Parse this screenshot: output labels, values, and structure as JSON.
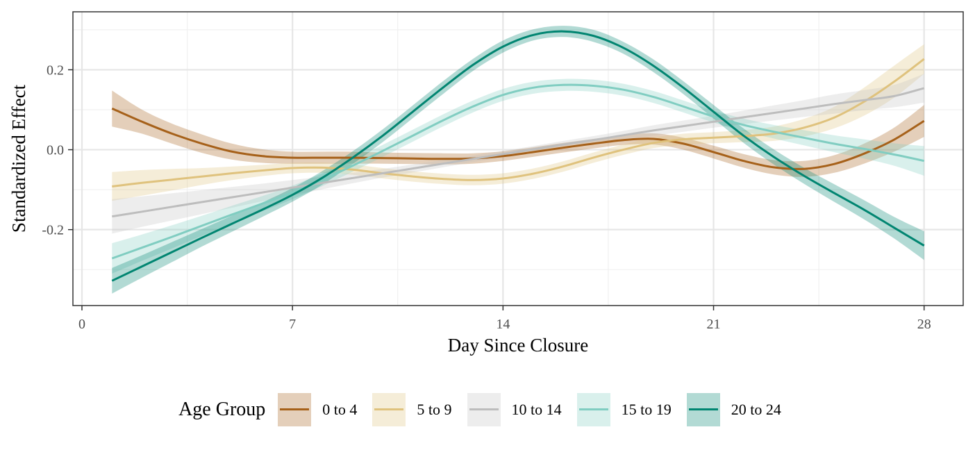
{
  "chart_data": {
    "type": "line",
    "xlabel": "Day Since Closure",
    "ylabel": "Standardized Effect",
    "xlim": [
      -0.3,
      29.3
    ],
    "ylim": [
      -0.39,
      0.345
    ],
    "xticks": [
      0,
      7,
      14,
      21,
      28
    ],
    "xtick_labels": [
      "0",
      "7",
      "14",
      "21",
      "28"
    ],
    "yticks": [
      -0.2,
      0.0,
      0.2
    ],
    "ytick_labels": [
      "-0.2",
      "0.0",
      "0.2"
    ],
    "grid": true,
    "legend_title": "Age Group",
    "legend_position": "bottom",
    "x": [
      1,
      2,
      3,
      4,
      5,
      6,
      7,
      8,
      9,
      10,
      11,
      12,
      13,
      14,
      15,
      16,
      17,
      18,
      19,
      20,
      21,
      22,
      23,
      24,
      25,
      26,
      27,
      28
    ],
    "series": [
      {
        "name": "0 to 4",
        "color": "#a6611a",
        "band_color": "#a6611a",
        "values": [
          0.103,
          0.07,
          0.04,
          0.015,
          -0.005,
          -0.016,
          -0.02,
          -0.02,
          -0.02,
          -0.021,
          -0.022,
          -0.023,
          -0.022,
          -0.016,
          -0.006,
          0.005,
          0.015,
          0.024,
          0.027,
          0.015,
          -0.006,
          -0.028,
          -0.044,
          -0.048,
          -0.036,
          -0.01,
          0.025,
          0.072
        ],
        "lower": [
          0.058,
          0.04,
          0.015,
          -0.008,
          -0.025,
          -0.033,
          -0.035,
          -0.035,
          -0.035,
          -0.035,
          -0.036,
          -0.037,
          -0.035,
          -0.028,
          -0.018,
          -0.007,
          0.003,
          0.012,
          0.013,
          0.0,
          -0.022,
          -0.045,
          -0.062,
          -0.068,
          -0.058,
          -0.035,
          -0.005,
          0.032
        ],
        "upper": [
          0.148,
          0.1,
          0.065,
          0.038,
          0.015,
          0.001,
          -0.005,
          -0.005,
          -0.005,
          -0.007,
          -0.008,
          -0.009,
          -0.009,
          -0.004,
          0.006,
          0.017,
          0.027,
          0.036,
          0.041,
          0.03,
          0.01,
          -0.011,
          -0.026,
          -0.028,
          -0.014,
          0.015,
          0.055,
          0.112
        ]
      },
      {
        "name": "5 to 9",
        "color": "#dfc27d",
        "band_color": "#dfc27d",
        "values": [
          -0.092,
          -0.083,
          -0.075,
          -0.067,
          -0.059,
          -0.052,
          -0.046,
          -0.045,
          -0.05,
          -0.059,
          -0.067,
          -0.073,
          -0.076,
          -0.072,
          -0.06,
          -0.042,
          -0.02,
          0.0,
          0.017,
          0.026,
          0.03,
          0.034,
          0.04,
          0.055,
          0.08,
          0.12,
          0.17,
          0.227
        ],
        "lower": [
          -0.128,
          -0.115,
          -0.102,
          -0.088,
          -0.076,
          -0.066,
          -0.059,
          -0.058,
          -0.063,
          -0.072,
          -0.08,
          -0.086,
          -0.089,
          -0.085,
          -0.073,
          -0.055,
          -0.033,
          -0.013,
          0.004,
          0.012,
          0.016,
          0.019,
          0.022,
          0.033,
          0.053,
          0.085,
          0.13,
          0.19
        ],
        "upper": [
          -0.056,
          -0.051,
          -0.048,
          -0.046,
          -0.042,
          -0.038,
          -0.033,
          -0.032,
          -0.037,
          -0.046,
          -0.054,
          -0.06,
          -0.063,
          -0.059,
          -0.047,
          -0.029,
          -0.007,
          0.013,
          0.03,
          0.04,
          0.044,
          0.049,
          0.058,
          0.077,
          0.107,
          0.155,
          0.21,
          0.264
        ]
      },
      {
        "name": "10 to 14",
        "color": "#bdbdbd",
        "band_color": "#bdbdbd",
        "values": [
          -0.167,
          -0.155,
          -0.143,
          -0.131,
          -0.119,
          -0.107,
          -0.095,
          -0.083,
          -0.071,
          -0.059,
          -0.047,
          -0.035,
          -0.023,
          -0.011,
          0.001,
          0.013,
          0.024,
          0.036,
          0.048,
          0.059,
          0.07,
          0.081,
          0.092,
          0.103,
          0.114,
          0.124,
          0.134,
          0.154
        ],
        "lower": [
          -0.21,
          -0.193,
          -0.177,
          -0.161,
          -0.145,
          -0.129,
          -0.114,
          -0.099,
          -0.084,
          -0.07,
          -0.057,
          -0.044,
          -0.031,
          -0.019,
          -0.007,
          0.004,
          0.014,
          0.025,
          0.035,
          0.045,
          0.055,
          0.064,
          0.073,
          0.082,
          0.09,
          0.099,
          0.106,
          0.118
        ],
        "upper": [
          -0.124,
          -0.117,
          -0.109,
          -0.101,
          -0.093,
          -0.085,
          -0.076,
          -0.067,
          -0.058,
          -0.048,
          -0.037,
          -0.026,
          -0.015,
          -0.003,
          0.009,
          0.022,
          0.034,
          0.047,
          0.061,
          0.073,
          0.085,
          0.098,
          0.111,
          0.124,
          0.138,
          0.149,
          0.162,
          0.19
        ]
      },
      {
        "name": "15 to 19",
        "color": "#80cdc1",
        "band_color": "#80cdc1",
        "values": [
          -0.272,
          -0.245,
          -0.218,
          -0.19,
          -0.162,
          -0.135,
          -0.107,
          -0.075,
          -0.04,
          -0.003,
          0.035,
          0.073,
          0.108,
          0.137,
          0.155,
          0.162,
          0.16,
          0.15,
          0.132,
          0.108,
          0.083,
          0.062,
          0.045,
          0.03,
          0.015,
          0.002,
          -0.012,
          -0.028
        ],
        "lower": [
          -0.31,
          -0.278,
          -0.247,
          -0.215,
          -0.184,
          -0.154,
          -0.124,
          -0.091,
          -0.055,
          -0.018,
          0.02,
          0.058,
          0.093,
          0.122,
          0.14,
          0.147,
          0.145,
          0.135,
          0.117,
          0.093,
          0.068,
          0.046,
          0.028,
          0.011,
          -0.006,
          -0.022,
          -0.04,
          -0.065
        ],
        "upper": [
          -0.234,
          -0.212,
          -0.189,
          -0.165,
          -0.14,
          -0.116,
          -0.09,
          -0.059,
          -0.025,
          0.012,
          0.05,
          0.088,
          0.123,
          0.152,
          0.17,
          0.177,
          0.175,
          0.165,
          0.147,
          0.123,
          0.098,
          0.078,
          0.062,
          0.049,
          0.036,
          0.026,
          0.016,
          0.009
        ]
      },
      {
        "name": "20 to 24",
        "color": "#018571",
        "band_color": "#018571",
        "values": [
          -0.328,
          -0.292,
          -0.256,
          -0.22,
          -0.185,
          -0.15,
          -0.113,
          -0.07,
          -0.02,
          0.035,
          0.095,
          0.155,
          0.212,
          0.258,
          0.287,
          0.296,
          0.285,
          0.255,
          0.21,
          0.155,
          0.095,
          0.035,
          -0.018,
          -0.065,
          -0.108,
          -0.15,
          -0.195,
          -0.24
        ],
        "lower": [
          -0.36,
          -0.32,
          -0.281,
          -0.242,
          -0.205,
          -0.168,
          -0.13,
          -0.087,
          -0.036,
          0.019,
          0.079,
          0.139,
          0.197,
          0.243,
          0.273,
          0.282,
          0.27,
          0.24,
          0.194,
          0.139,
          0.078,
          0.017,
          -0.037,
          -0.085,
          -0.13,
          -0.174,
          -0.222,
          -0.276
        ],
        "upper": [
          -0.296,
          -0.264,
          -0.231,
          -0.198,
          -0.165,
          -0.132,
          -0.096,
          -0.053,
          -0.004,
          0.051,
          0.111,
          0.171,
          0.227,
          0.273,
          0.301,
          0.31,
          0.3,
          0.27,
          0.226,
          0.171,
          0.112,
          0.053,
          0.001,
          -0.045,
          -0.086,
          -0.126,
          -0.168,
          -0.204
        ]
      }
    ]
  }
}
